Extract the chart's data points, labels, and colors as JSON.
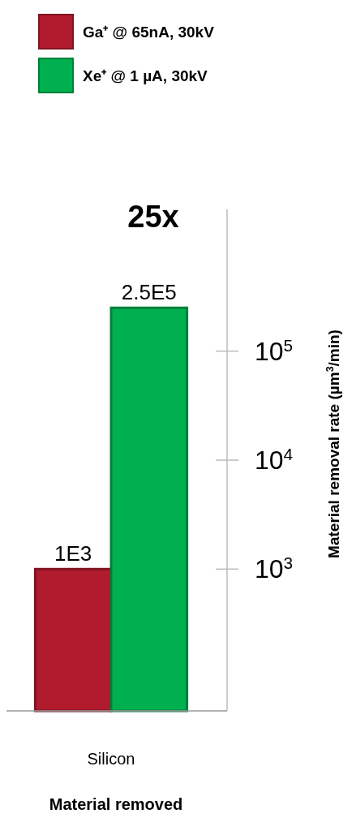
{
  "chart_data": {
    "type": "bar",
    "categories": [
      "Silicon"
    ],
    "series": [
      {
        "name": "Ga⁺ @ 65nA, 30kV",
        "color": "#b01c2e",
        "values": [
          1000
        ],
        "value_labels": [
          "1E3"
        ]
      },
      {
        "name": "Xe⁺ @ 1 µA, 30kV",
        "color": "#00b050",
        "values": [
          250000
        ],
        "value_labels": [
          "2.5E5"
        ]
      }
    ],
    "xlabel": "Material removed",
    "ylabel": "Material removal rate (µm$^{3}$/min)",
    "log": true,
    "ylim": [
      50,
      2000000
    ],
    "yticks": [
      {
        "value": 1000,
        "label": "10$^{3}$"
      },
      {
        "value": 10000,
        "label": "10$^{4}$"
      },
      {
        "value": 100000,
        "label": "10$^{5}$"
      }
    ],
    "annotations": [
      "25x"
    ],
    "legend": "top",
    "grid": false
  }
}
